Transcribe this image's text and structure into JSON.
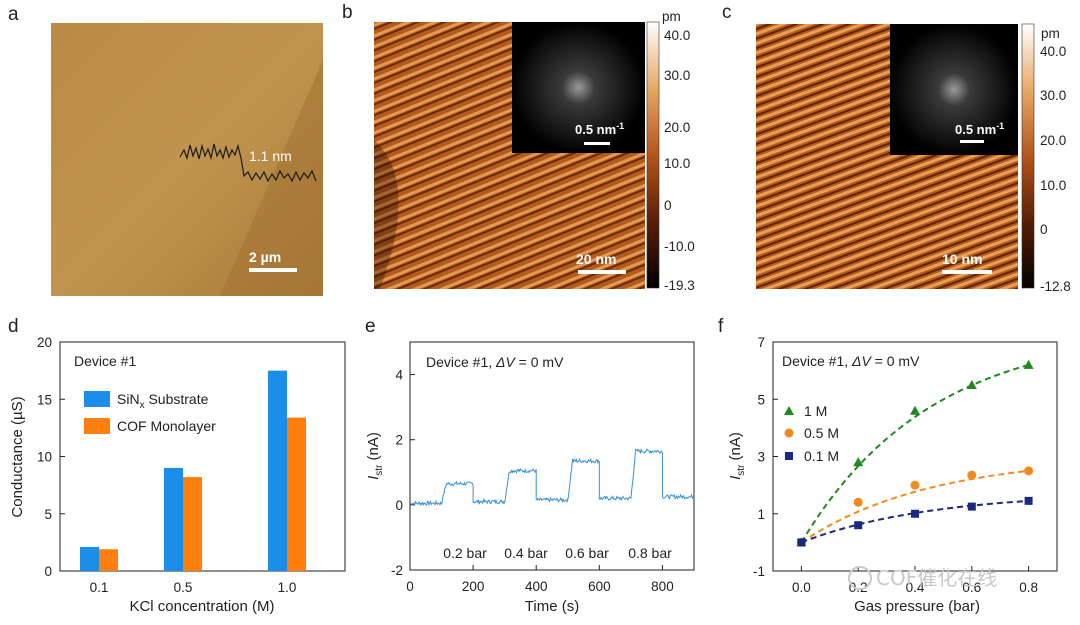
{
  "panels": {
    "a": {
      "letter": "a",
      "height_label": "1.1 nm",
      "scalebar": "2 µm"
    },
    "b": {
      "letter": "b",
      "scalebar": "20 nm",
      "inset_scale": "0.5 nm",
      "colorbar_unit": "pm",
      "colorbar_ticks": [
        "40.0",
        "30.0",
        "20.0",
        "10.0",
        "0",
        "-10.0",
        "-19.3"
      ]
    },
    "c": {
      "letter": "c",
      "scalebar": "10 nm",
      "inset_scale": "0.5 nm",
      "colorbar_unit": "pm",
      "colorbar_ticks": [
        "40.0",
        "30.0",
        "20.0",
        "10.0",
        "0",
        "-12.8"
      ]
    },
    "inset_exp": "-1",
    "d": {
      "letter": "d"
    },
    "e": {
      "letter": "e"
    },
    "f": {
      "letter": "f"
    }
  },
  "colors": {
    "blue": "#1a8ee8",
    "orange": "#ff7f0e",
    "green": "#1f8a1f",
    "orange_dot": "#f28b1e",
    "navy": "#1a2a80",
    "trace": "#3a8fd6"
  },
  "chart_data": [
    {
      "id": "d",
      "type": "bar",
      "title": "Device #1",
      "xlabel": "KCl concentration (M)",
      "ylabel": "Conductance (µS)",
      "categories": [
        "0.1",
        "0.5",
        "1.0"
      ],
      "ylim": [
        0,
        20
      ],
      "yticks": [
        "0",
        "5",
        "10",
        "15",
        "20"
      ],
      "series": [
        {
          "name": "SiN",
          "name_sub": "x",
          "name_rest": " Substrate",
          "values": [
            2.1,
            9.0,
            17.5
          ]
        },
        {
          "name": "COF Monolayer",
          "values": [
            1.9,
            8.2,
            13.4
          ]
        }
      ]
    },
    {
      "id": "e",
      "type": "line",
      "title_prefix": "Device #1, ",
      "title_dv": "ΔV",
      "title_suffix": " = 0 mV",
      "xlabel": "Time (s)",
      "ylabel_main": "I",
      "ylabel_sub": "str",
      "ylabel_unit": " (nA)",
      "xlim": [
        0,
        900
      ],
      "ylim": [
        -2,
        5
      ],
      "xticks": [
        "0",
        "200",
        "400",
        "600",
        "800"
      ],
      "yticks": [
        "-2",
        "0",
        "2",
        "4"
      ],
      "steps": [
        {
          "start": 0,
          "end": 100,
          "level": 0.05
        },
        {
          "start": 100,
          "end": 200,
          "level": 0.65
        },
        {
          "start": 200,
          "end": 300,
          "level": 0.1
        },
        {
          "start": 300,
          "end": 400,
          "level": 1.05
        },
        {
          "start": 400,
          "end": 500,
          "level": 0.15
        },
        {
          "start": 500,
          "end": 600,
          "level": 1.35
        },
        {
          "start": 600,
          "end": 700,
          "level": 0.2
        },
        {
          "start": 700,
          "end": 800,
          "level": 1.65
        },
        {
          "start": 800,
          "end": 900,
          "level": 0.25
        }
      ],
      "annotations": [
        "0.2 bar",
        "0.4 bar",
        "0.6 bar",
        "0.8 bar"
      ]
    },
    {
      "id": "f",
      "type": "scatter",
      "title_prefix": "Device #1, ",
      "title_dv": "ΔV",
      "title_suffix": " = 0 mV",
      "xlabel": "Gas pressure (bar)",
      "ylabel_main": "I",
      "ylabel_sub": "str",
      "ylabel_unit": " (nA)",
      "xlim": [
        -0.1,
        0.9
      ],
      "ylim": [
        -1,
        7
      ],
      "xticks": [
        "0.0",
        "0.2",
        "0.4",
        "0.6",
        "0.8"
      ],
      "yticks": [
        "-1",
        "1",
        "3",
        "5",
        "7"
      ],
      "x": [
        0.0,
        0.2,
        0.4,
        0.6,
        0.8
      ],
      "series": [
        {
          "name": "1 M",
          "values": [
            0.0,
            2.8,
            4.6,
            5.5,
            6.2
          ]
        },
        {
          "name": "0.5 M",
          "values": [
            0.0,
            1.4,
            2.0,
            2.35,
            2.5
          ]
        },
        {
          "name": "0.1 M",
          "values": [
            0.0,
            0.6,
            1.0,
            1.25,
            1.45
          ]
        }
      ]
    }
  ],
  "watermark": "COF催化在线"
}
